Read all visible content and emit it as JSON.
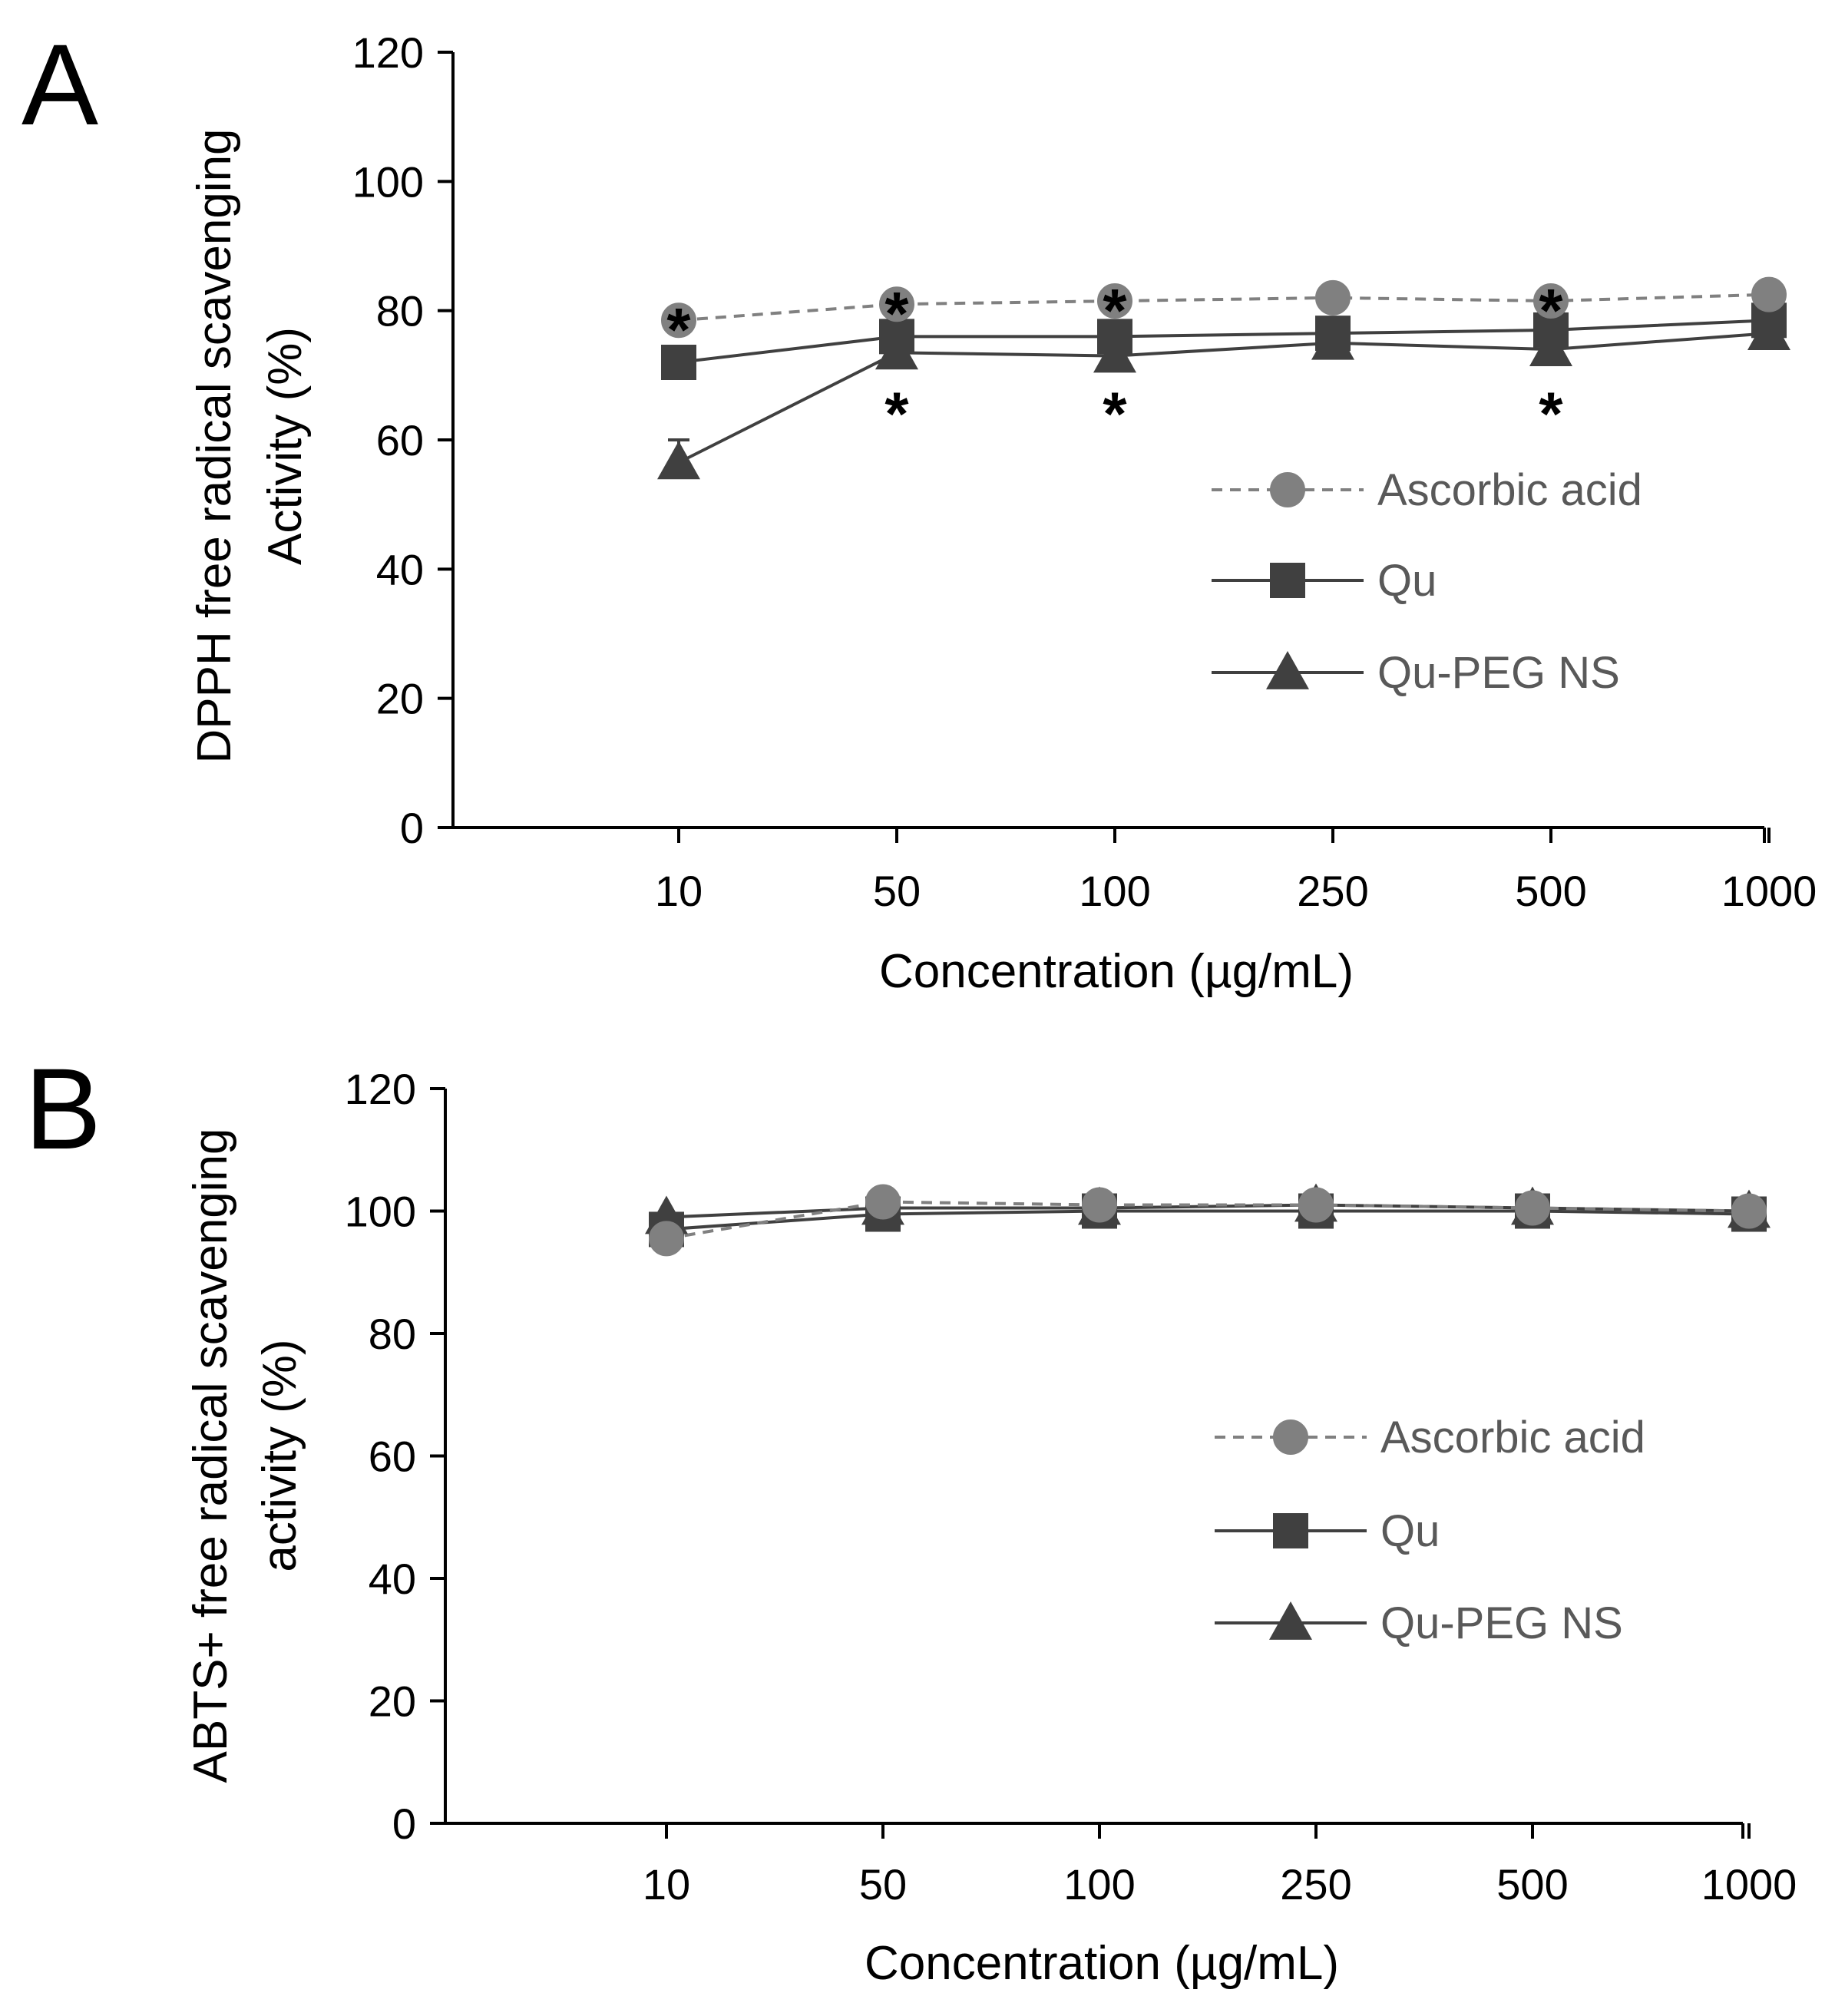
{
  "chart_data": [
    {
      "panel": "A",
      "type": "line",
      "categories": [
        "10",
        "50",
        "100",
        "250",
        "500",
        "1000"
      ],
      "ylabel_lines": [
        "DPPH free radical scavenging",
        "Activity (%)"
      ],
      "xlabel": "Concentration (µg/mL)",
      "ylim": [
        0,
        120
      ],
      "yticks": [
        0,
        20,
        40,
        60,
        80,
        100,
        120
      ],
      "legend": "right",
      "series": [
        {
          "name": "Ascorbic acid",
          "marker": "circle",
          "dash": "dashed",
          "color": "#808080",
          "values": [
            78.5,
            81,
            81.5,
            82,
            81.5,
            82.5
          ],
          "errors": [
            0.8,
            0.8,
            0.8,
            0.8,
            0.8,
            0.8
          ]
        },
        {
          "name": "Qu",
          "marker": "square",
          "dash": "solid",
          "color": "#404040",
          "values": [
            72,
            76,
            76,
            76.5,
            77,
            78.5
          ],
          "errors": [
            0.8,
            0.8,
            0.8,
            0.8,
            0.8,
            0.8
          ]
        },
        {
          "name": "Qu-PEG NS",
          "marker": "triangle",
          "dash": "solid",
          "color": "#404040",
          "values": [
            56.5,
            73.5,
            73,
            75,
            74,
            76.5
          ],
          "errors": [
            3.5,
            0.8,
            0.8,
            0.8,
            0.8,
            0.8
          ]
        }
      ],
      "annotations": [
        {
          "text": "*",
          "category": "10",
          "y": 79,
          "placement": "on"
        },
        {
          "text": "*",
          "category": "50",
          "y": 81.5,
          "placement": "on"
        },
        {
          "text": "*",
          "category": "100",
          "y": 82,
          "placement": "on"
        },
        {
          "text": "*",
          "category": "500",
          "y": 82,
          "placement": "on"
        },
        {
          "text": "*",
          "category": "50",
          "y": 66,
          "placement": "below"
        },
        {
          "text": "*",
          "category": "100",
          "y": 66,
          "placement": "below"
        },
        {
          "text": "*",
          "category": "500",
          "y": 66,
          "placement": "below"
        }
      ]
    },
    {
      "panel": "B",
      "type": "line",
      "categories": [
        "10",
        "50",
        "100",
        "250",
        "500",
        "1000"
      ],
      "ylabel_lines": [
        "ABTS+ free radical scavenging",
        "activity (%)"
      ],
      "xlabel": "Concentration (µg/mL)",
      "ylim": [
        0,
        120
      ],
      "yticks": [
        0,
        20,
        40,
        60,
        80,
        100,
        120
      ],
      "legend": "right",
      "series": [
        {
          "name": "Ascorbic acid",
          "marker": "circle",
          "dash": "dashed",
          "color": "#808080",
          "values": [
            95.5,
            101.5,
            101,
            101,
            100.5,
            100
          ],
          "errors": [
            0,
            0,
            0,
            0,
            0,
            0
          ]
        },
        {
          "name": "Qu",
          "marker": "square",
          "dash": "solid",
          "color": "#404040",
          "values": [
            97,
            99.5,
            100,
            100,
            100,
            99.5
          ],
          "errors": [
            0,
            0,
            0,
            0,
            0,
            0
          ]
        },
        {
          "name": "Qu-PEG NS",
          "marker": "triangle",
          "dash": "solid",
          "color": "#404040",
          "values": [
            99,
            100.5,
            100.5,
            101,
            100.5,
            100
          ],
          "errors": [
            0,
            0,
            0,
            0,
            0,
            0
          ]
        }
      ],
      "annotations": []
    }
  ]
}
